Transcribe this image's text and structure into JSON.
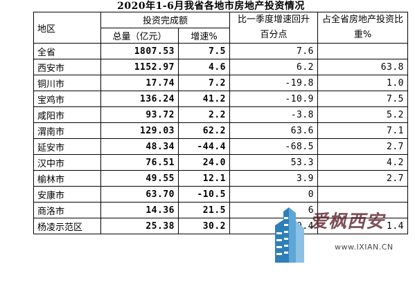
{
  "title": "2020年1-6月我省各地市房地产投资情况",
  "header": {
    "region": "地区",
    "investment_group": "投资完成额",
    "total": "总量（亿元）",
    "growth": "增速%",
    "vs_q1": "比一季度增速回升百分点",
    "share": "占全省房地产投资比重%"
  },
  "rows": [
    {
      "region": "全省",
      "total": "1807.53",
      "growth": "7.5",
      "vs_q1": "7.6",
      "share": ""
    },
    {
      "region": "西安市",
      "total": "1152.97",
      "growth": "4.6",
      "vs_q1": "6.2",
      "share": "63.8"
    },
    {
      "region": "铜川市",
      "total": "17.74",
      "growth": "7.2",
      "vs_q1": "-19.8",
      "share": "1.0"
    },
    {
      "region": "宝鸡市",
      "total": "136.24",
      "growth": "41.2",
      "vs_q1": "-10.9",
      "share": "7.5"
    },
    {
      "region": "咸阳市",
      "total": "93.72",
      "growth": "2.2",
      "vs_q1": "-3.8",
      "share": "5.2"
    },
    {
      "region": "渭南市",
      "total": "129.03",
      "growth": "62.2",
      "vs_q1": "63.6",
      "share": "7.1"
    },
    {
      "region": "延安市",
      "total": "48.34",
      "growth": "-44.4",
      "vs_q1": "-68.5",
      "share": "2.7"
    },
    {
      "region": "汉中市",
      "total": "76.51",
      "growth": "24.0",
      "vs_q1": "53.3",
      "share": "4.2"
    },
    {
      "region": "榆林市",
      "total": "49.55",
      "growth": "12.1",
      "vs_q1": "3.9",
      "share": "2.7"
    },
    {
      "region": "安康市",
      "total": "63.70",
      "growth": "-10.5",
      "vs_q1": "0",
      "share": ""
    },
    {
      "region": "商洛市",
      "total": "14.36",
      "growth": "21.5",
      "vs_q1": "6",
      "share": ""
    },
    {
      "region": "杨凌示范区",
      "total": "25.38",
      "growth": "30.2",
      "vs_q1": "0.4",
      "share": "1.4"
    }
  ],
  "watermark": {
    "brand": "爱枫西安",
    "url": "www.IXIAN.CN"
  },
  "colors": {
    "watermark_blue": "#2e7fb8",
    "watermark_brand": "#5a1e28"
  }
}
